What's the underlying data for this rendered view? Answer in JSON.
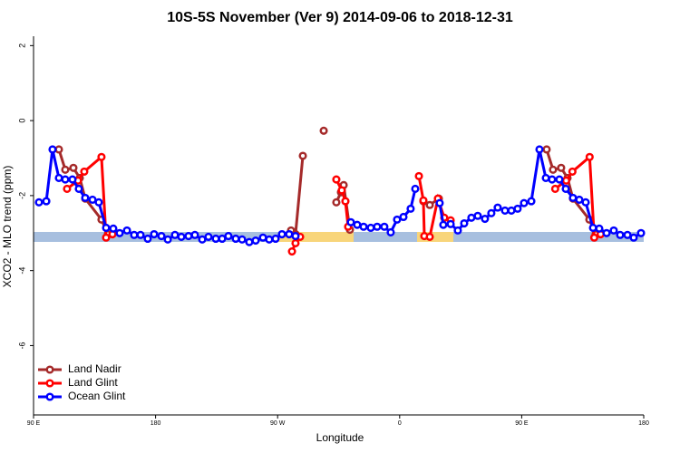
{
  "chart_data": {
    "type": "line",
    "title": "10S-5S November (Ver 9)   2014-09-06 to 2018-12-31",
    "xlabel": "Longitude",
    "ylabel": "XCO2 - MLO trend (ppm)",
    "xlim": [
      90,
      540
    ],
    "ylim": [
      -7.85,
      2.25
    ],
    "xticks": [
      90,
      180,
      {
        "value": 270,
        "label": "90 W"
      },
      {
        "value": 360,
        "label": "0"
      },
      {
        "value": 450,
        "label": "90 E"
      },
      {
        "value": 540,
        "label": "180"
      }
    ],
    "xticklabel0": "90 E",
    "yticks": [
      2,
      0,
      -2,
      -4,
      -6
    ],
    "legend": "bottom-left",
    "series": [
      {
        "name": "Land Nadir",
        "color": "#a52a2a",
        "x": [
          108.7,
          113.4,
          119.4,
          124.1,
          128.1,
          140.1,
          144.8,
          null,
          279.9,
          283.2,
          288.6,
          null,
          304.0,
          null,
          313.3,
          316.7,
          318.7,
          323.3,
          null,
          377.5,
          382.2,
          388.9,
          null,
          468.4,
          473.1,
          479.1,
          483.8,
          487.8,
          499.9,
          504.5
        ],
        "values": [
          -0.77,
          -1.31,
          -1.26,
          -1.53,
          -2.08,
          -2.64,
          -3.03,
          null,
          -2.93,
          -3.03,
          -0.94,
          null,
          -0.27,
          null,
          -2.18,
          -1.91,
          -1.72,
          -2.91,
          null,
          -2.15,
          -2.25,
          -2.08,
          null,
          -0.77,
          -1.31,
          -1.26,
          -1.53,
          -2.08,
          -2.64,
          -3.03
        ]
      },
      {
        "name": "Land Glint",
        "color": "#ff0000",
        "x": [
          114.7,
          122.8,
          127.4,
          140.1,
          143.5,
          148.2,
          null,
          280.6,
          283.2,
          286.6,
          null,
          313.3,
          317.3,
          320.0,
          322.0,
          null,
          374.2,
          377.5,
          378.2,
          382.2,
          388.2,
          392.9,
          397.6,
          null,
          474.7,
          482.8,
          487.4,
          500.1,
          503.5,
          508.2
        ],
        "values": [
          -1.82,
          -1.6,
          -1.36,
          -0.97,
          -3.12,
          -3.03,
          null,
          -3.49,
          -3.27,
          -3.1,
          null,
          -1.57,
          -1.86,
          -2.15,
          -2.83,
          null,
          -1.48,
          -2.13,
          -3.08,
          -3.1,
          -2.08,
          -2.59,
          -2.66,
          null,
          -1.82,
          -1.6,
          -1.36,
          -0.97,
          -3.12,
          -3.03
        ]
      },
      {
        "name": "Ocean Glint",
        "color": "#0000ff",
        "x": [
          94.0,
          99.4,
          104.0,
          108.7,
          113.4,
          118.7,
          123.4,
          128.1,
          133.5,
          138.1,
          143.5,
          148.8,
          153.5,
          158.9,
          164.2,
          168.9,
          174.2,
          178.9,
          184.3,
          189.0,
          194.3,
          199.0,
          204.3,
          209.0,
          214.4,
          219.0,
          224.4,
          229.1,
          233.7,
          239.1,
          243.8,
          249.1,
          253.8,
          259.2,
          263.8,
          268.5,
          273.2,
          278.5,
          283.2,
          null,
          324.0,
          328.7,
          333.4,
          338.7,
          343.4,
          348.7,
          353.4,
          358.1,
          362.8,
          368.1,
          371.5,
          null,
          389.5,
          392.2,
          397.6,
          402.9,
          407.6,
          412.9,
          417.6,
          422.9,
          427.6,
          432.3,
          437.7,
          442.4,
          447.0,
          451.7,
          457.1,
          463.1,
          467.8,
          472.4,
          477.8,
          482.5,
          487.8,
          492.5,
          497.2,
          502.6,
          507.2,
          512.6,
          517.9,
          522.6,
          528.0,
          532.6,
          538.0
        ],
        "values": [
          -2.18,
          -2.15,
          -0.77,
          -1.53,
          -1.57,
          -1.57,
          -1.82,
          -2.06,
          -2.11,
          -2.18,
          -2.86,
          -2.88,
          -3.0,
          -2.93,
          -3.05,
          -3.05,
          -3.15,
          -3.03,
          -3.08,
          -3.17,
          -3.05,
          -3.1,
          -3.08,
          -3.05,
          -3.17,
          -3.1,
          -3.15,
          -3.15,
          -3.08,
          -3.15,
          -3.17,
          -3.24,
          -3.2,
          -3.12,
          -3.17,
          -3.15,
          -3.03,
          -3.03,
          -3.08,
          null,
          -2.71,
          -2.78,
          -2.83,
          -2.86,
          -2.83,
          -2.83,
          -2.98,
          -2.64,
          -2.57,
          -2.35,
          -1.82,
          null,
          -2.2,
          -2.78,
          -2.76,
          -2.93,
          -2.74,
          -2.59,
          -2.54,
          -2.62,
          -2.47,
          -2.32,
          -2.4,
          -2.4,
          -2.35,
          -2.2,
          -2.15,
          -0.77,
          -1.53,
          -1.57,
          -1.57,
          -1.82,
          -2.06,
          -2.11,
          -2.18,
          -2.86,
          -2.88,
          -3.0,
          -2.93,
          -3.05,
          -3.05,
          -3.12,
          -3.0
        ]
      }
    ]
  }
}
